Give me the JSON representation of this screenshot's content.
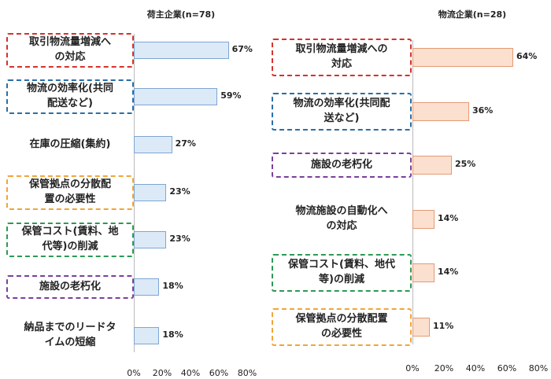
{
  "colors": {
    "red": "#d6312b",
    "blue": "#2a6ea6",
    "orange": "#f0a53a",
    "purple": "#7a3f9b",
    "green": "#2b9a55"
  },
  "chart_data": [
    {
      "type": "bar",
      "orientation": "horizontal",
      "title": "荷主企業(n=78)",
      "categories": [
        "取引物流量増減への対応",
        "物流の効率化(共同配送など)",
        "在庫の圧縮(集約)",
        "保管拠点の分散配置の必要性",
        "保管コスト(賃料、地代等)の削減",
        "施設の老朽化",
        "納品までのリードタイムの短縮"
      ],
      "labels": [
        "取引物流量増減へ\nの対応",
        "物流の効率化(共同\n配送など)",
        "在庫の圧縮(集約)",
        "保管拠点の分散配\n置の必要性",
        "保管コスト(賃料、地\n代等)の削減",
        "施設の老朽化",
        "納品までのリードタ\nイムの短縮"
      ],
      "values": [
        67,
        59,
        27,
        23,
        23,
        18,
        18
      ],
      "value_labels": [
        "67%",
        "59%",
        "27%",
        "23%",
        "23%",
        "18%",
        "18%"
      ],
      "box_colors": [
        "red",
        "blue",
        "",
        "orange",
        "green",
        "purple",
        ""
      ],
      "xlim": [
        0,
        80
      ],
      "xticks": [
        "0%",
        "20%",
        "40%",
        "60%",
        "80%"
      ]
    },
    {
      "type": "bar",
      "orientation": "horizontal",
      "title": "物流企業(n=28)",
      "categories": [
        "取引物流量増減への対応",
        "物流の効率化(共同配送など)",
        "施設の老朽化",
        "物流施設の自動化への対応",
        "保管コスト(賃料、地代等)の削減",
        "保管拠点の分散配置の必要性"
      ],
      "labels": [
        "取引物流量増減への\n対応",
        "物流の効率化(共同配\n送など)",
        "施設の老朽化",
        "物流施設の自動化へ\nの対応",
        "保管コスト(賃料、地代\n等)の削減",
        "保管拠点の分散配置\nの必要性"
      ],
      "values": [
        64,
        36,
        25,
        14,
        14,
        11
      ],
      "value_labels": [
        "64%",
        "36%",
        "25%",
        "14%",
        "14%",
        "11%"
      ],
      "box_colors": [
        "red",
        "blue",
        "purple",
        "",
        "green",
        "orange"
      ],
      "xlim": [
        0,
        80
      ],
      "xticks": [
        "0%",
        "20%",
        "40%",
        "60%",
        "80%"
      ]
    }
  ]
}
